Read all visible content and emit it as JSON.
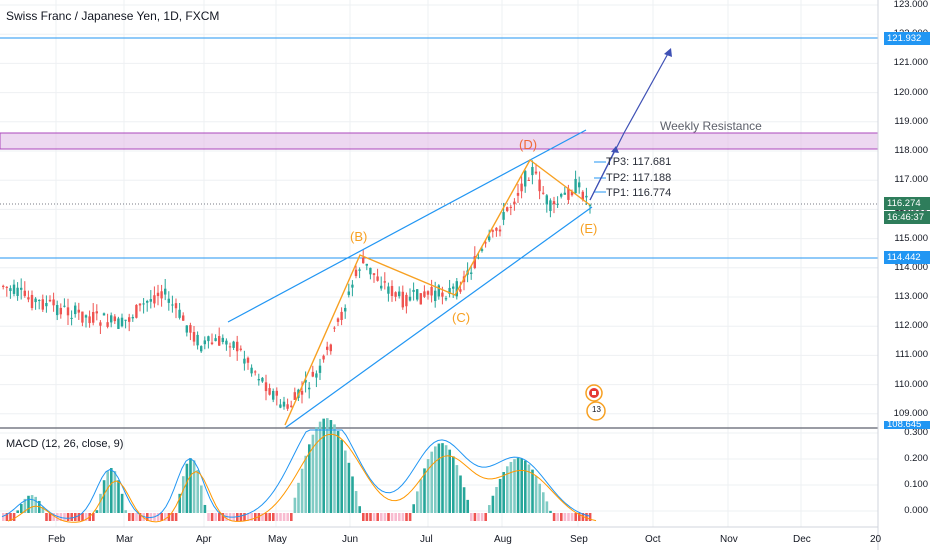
{
  "title": "Swiss Franc / Japanese Yen, 1D, FXCM",
  "macd_label": "MACD (12, 26, close, 9)",
  "price_axis": [
    "123.000",
    "122.000",
    "121.000",
    "120.000",
    "119.000",
    "118.000",
    "117.000",
    "116.000",
    "115.000",
    "114.000",
    "113.000",
    "112.000",
    "111.000",
    "110.000",
    "109.000"
  ],
  "macd_axis": [
    "0.300",
    "0.200",
    "0.100",
    "0.000"
  ],
  "price_tags": {
    "resistance": "121.932",
    "current": "116.274",
    "countdown": "16:46:37",
    "support": "114.442",
    "cut": "108.645"
  },
  "time_axis": [
    "Feb",
    "Mar",
    "Apr",
    "May",
    "Jun",
    "Jul",
    "Aug",
    "Sep",
    "Oct",
    "Nov",
    "Dec",
    "20"
  ],
  "waves": {
    "B": "(B)",
    "C": "(C)",
    "D": "(D)",
    "E": "(E)"
  },
  "targets": {
    "tp3": "TP3: 117.681",
    "tp2": "TP2: 117.188",
    "tp1": "TP1: 116.774"
  },
  "weekly_resistance": "Weekly Resistance",
  "event_badge": "13",
  "colors": {
    "bull": "#26a69a",
    "bear": "#ef5350",
    "trend": "#2196f3",
    "wave": "#f7a021",
    "zone": "#ce93d8",
    "arrow": "#3f51b5",
    "macd_pos": "#26a69a",
    "macd_neg": "#ef5350"
  }
}
